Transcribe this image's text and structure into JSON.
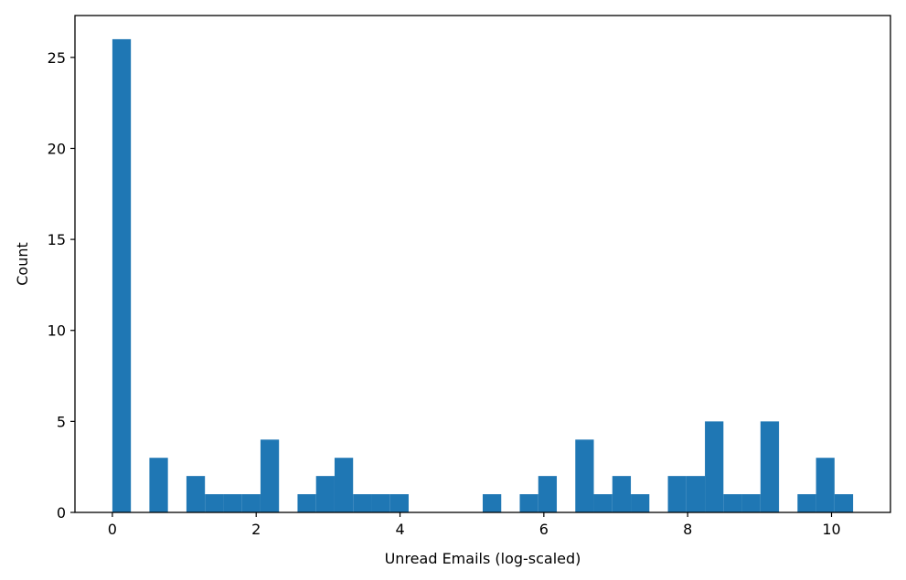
{
  "chart_data": {
    "type": "bar",
    "title": "",
    "xlabel": "Unread Emails (log-scaled)",
    "ylabel": "Count",
    "xlim": [
      -0.52,
      10.82
    ],
    "ylim": [
      0,
      27.3
    ],
    "xticks": [
      0,
      2,
      4,
      6,
      8,
      10
    ],
    "yticks": [
      0,
      5,
      10,
      15,
      20,
      25
    ],
    "grid": false,
    "legend": "none",
    "bar_color": "#1f77b4",
    "bin_start": 0.0,
    "bin_width": 0.2575,
    "counts": [
      26,
      0,
      3,
      0,
      2,
      1,
      1,
      1,
      4,
      0,
      1,
      2,
      3,
      1,
      1,
      1,
      0,
      0,
      0,
      0,
      1,
      0,
      1,
      2,
      0,
      4,
      1,
      2,
      1,
      0,
      2,
      2,
      5,
      1,
      1,
      5,
      0,
      1,
      3,
      1
    ]
  }
}
